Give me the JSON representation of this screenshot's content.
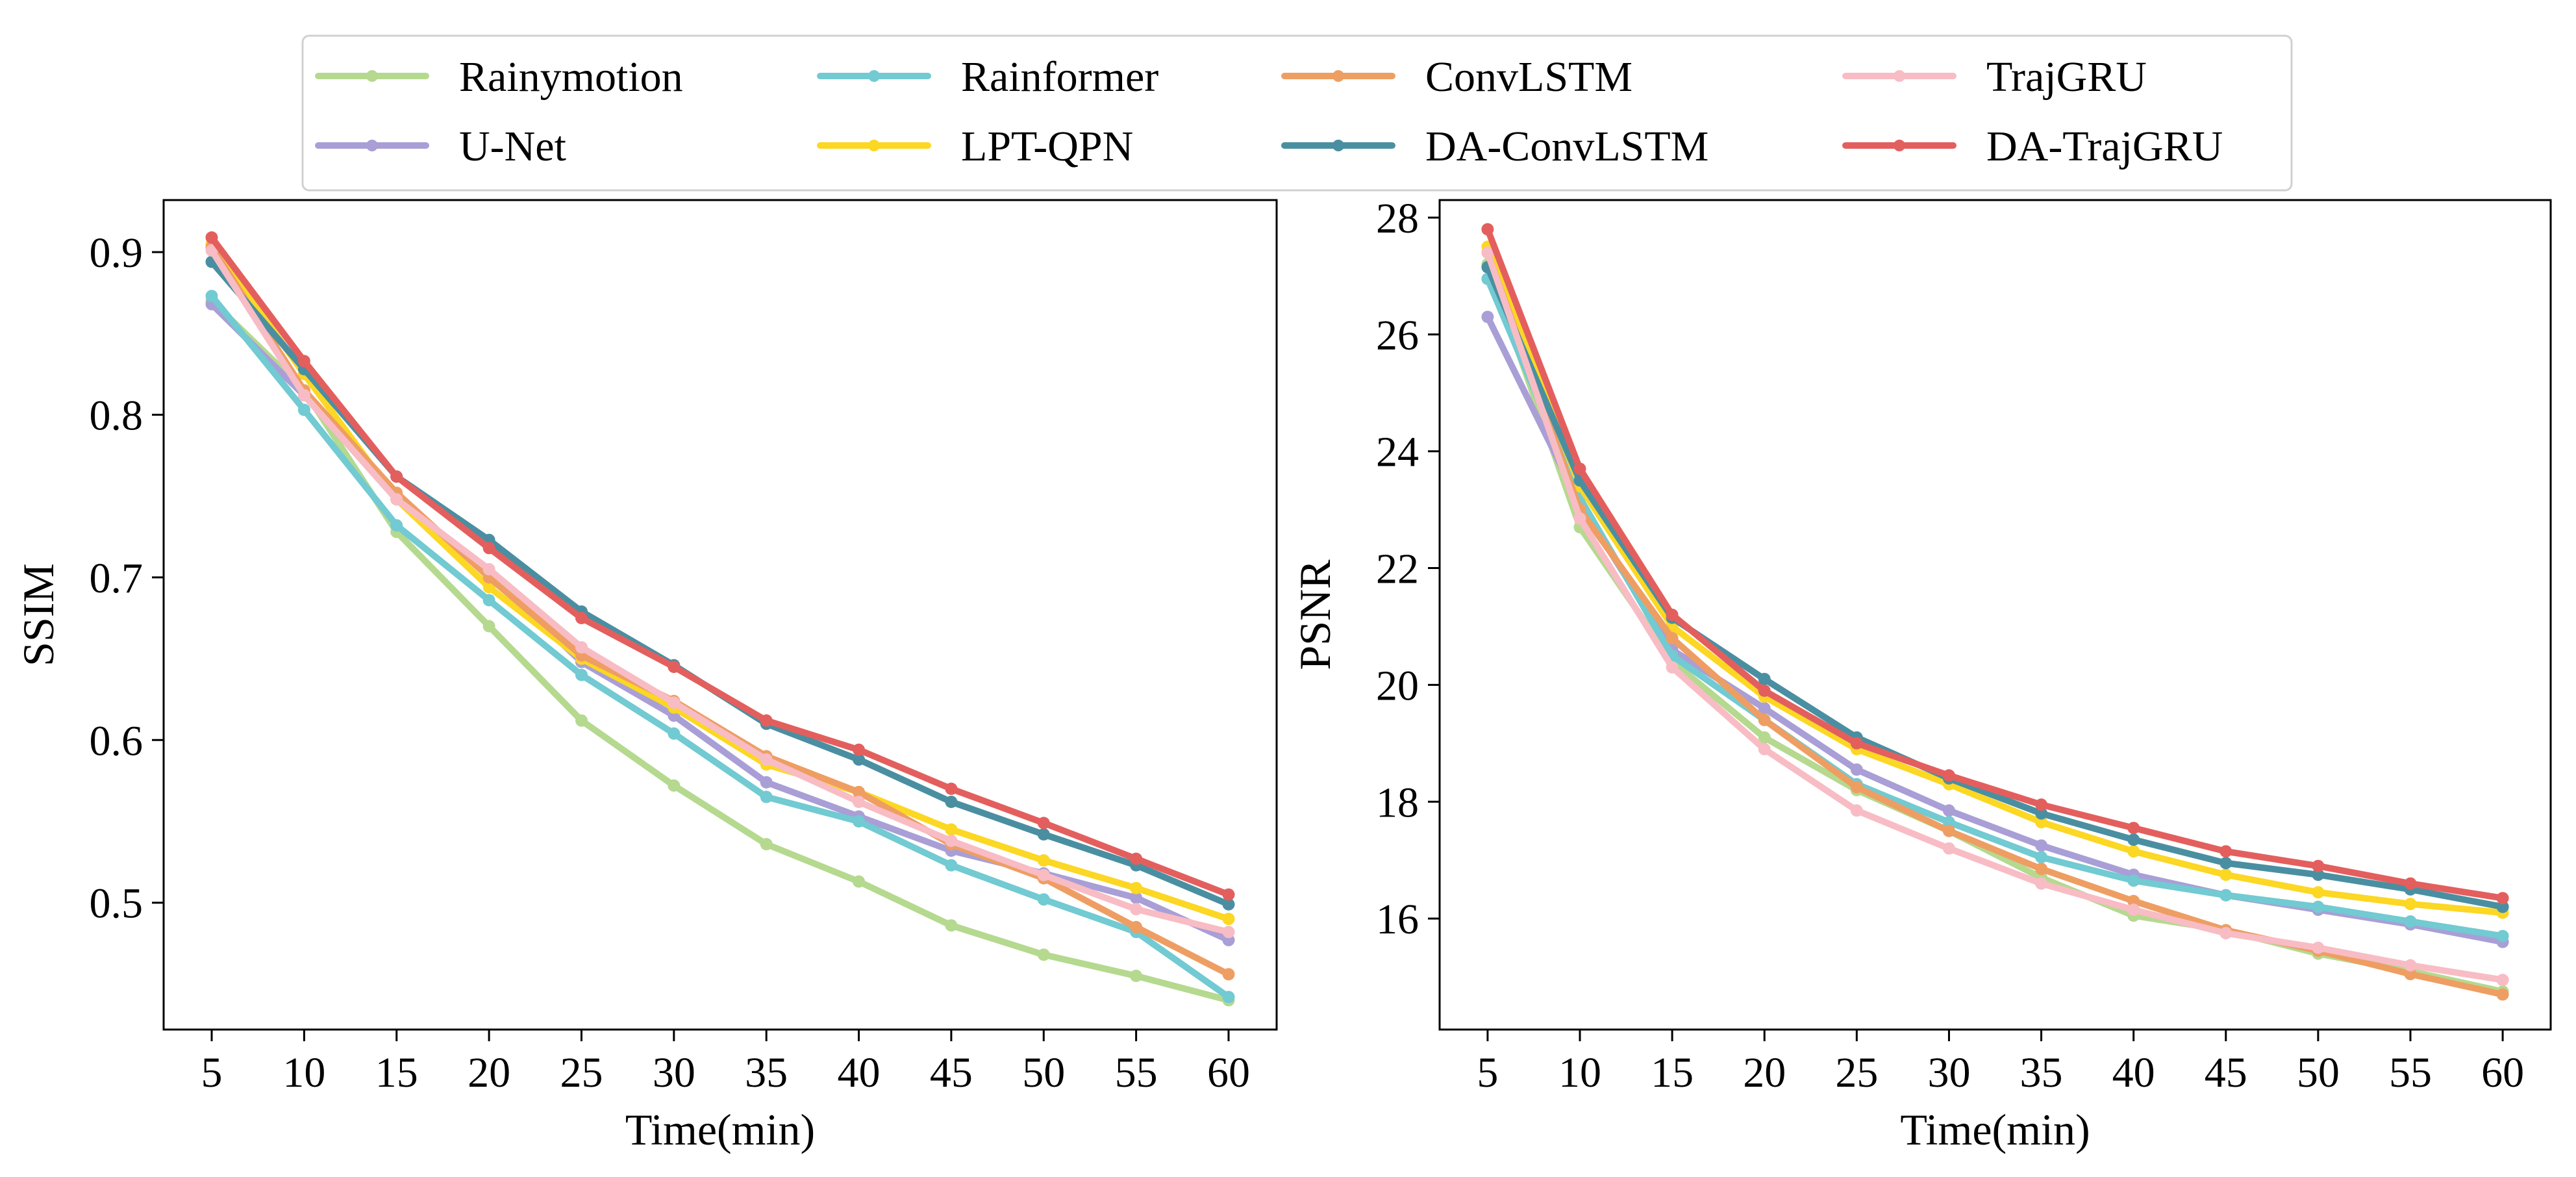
{
  "legend": {
    "columns": 4,
    "entries": [
      "Rainymotion",
      "Rainformer",
      "ConvLSTM",
      "TrajGRU",
      "U-Net",
      "LPT-QPN",
      "DA-ConvLSTM",
      "DA-TrajGRU"
    ]
  },
  "chart_data": [
    {
      "type": "line",
      "title": "",
      "xlabel": "Time(min)",
      "ylabel": "SSIM",
      "x": [
        5,
        10,
        15,
        20,
        25,
        30,
        35,
        40,
        45,
        50,
        55,
        60
      ],
      "xticks": [
        "5",
        "10",
        "15",
        "20",
        "25",
        "30",
        "35",
        "40",
        "45",
        "50",
        "55",
        "60"
      ],
      "xlim": [
        2.4,
        62.6
      ],
      "yticks": [
        "0.5",
        "0.6",
        "0.7",
        "0.8",
        "0.9"
      ],
      "ytick_values": [
        0.5,
        0.6,
        0.7,
        0.8,
        0.9
      ],
      "ylim": [
        0.422,
        0.932
      ],
      "grid": false,
      "series": [
        {
          "name": "Rainymotion",
          "color": "#b5d98f",
          "values": [
            0.87,
            0.815,
            0.728,
            0.67,
            0.612,
            0.572,
            0.536,
            0.513,
            0.486,
            0.468,
            0.455,
            0.44
          ]
        },
        {
          "name": "U-Net",
          "color": "#a99fd6",
          "values": [
            0.868,
            0.812,
            0.748,
            0.702,
            0.648,
            0.615,
            0.574,
            0.553,
            0.532,
            0.518,
            0.503,
            0.477
          ]
        },
        {
          "name": "Rainformer",
          "color": "#72cad2",
          "values": [
            0.873,
            0.803,
            0.732,
            0.686,
            0.64,
            0.604,
            0.565,
            0.55,
            0.523,
            0.502,
            0.482,
            0.442
          ]
        },
        {
          "name": "LPT-QPN",
          "color": "#fcd723",
          "values": [
            0.905,
            0.825,
            0.748,
            0.694,
            0.65,
            0.62,
            0.585,
            0.568,
            0.545,
            0.526,
            0.509,
            0.49
          ]
        },
        {
          "name": "ConvLSTM",
          "color": "#ee9e63",
          "values": [
            0.903,
            0.815,
            0.752,
            0.7,
            0.652,
            0.624,
            0.59,
            0.568,
            0.536,
            0.515,
            0.485,
            0.456
          ]
        },
        {
          "name": "DA-ConvLSTM",
          "color": "#4a8fa1",
          "values": [
            0.894,
            0.828,
            0.762,
            0.723,
            0.679,
            0.646,
            0.61,
            0.588,
            0.562,
            0.542,
            0.523,
            0.499
          ]
        },
        {
          "name": "TrajGRU",
          "color": "#f8bcc5",
          "values": [
            0.901,
            0.812,
            0.748,
            0.705,
            0.657,
            0.623,
            0.588,
            0.562,
            0.538,
            0.517,
            0.496,
            0.482
          ]
        },
        {
          "name": "DA-TrajGRU",
          "color": "#e35f5e",
          "values": [
            0.909,
            0.833,
            0.762,
            0.718,
            0.675,
            0.645,
            0.612,
            0.594,
            0.57,
            0.549,
            0.527,
            0.505
          ]
        }
      ]
    },
    {
      "type": "line",
      "title": "",
      "xlabel": "Time(min)",
      "ylabel": "PSNR",
      "x": [
        5,
        10,
        15,
        20,
        25,
        30,
        35,
        40,
        45,
        50,
        55,
        60
      ],
      "xticks": [
        "5",
        "10",
        "15",
        "20",
        "25",
        "30",
        "35",
        "40",
        "45",
        "50",
        "55",
        "60"
      ],
      "xlim": [
        2.4,
        62.6
      ],
      "yticks": [
        "16",
        "18",
        "20",
        "22",
        "24",
        "26",
        "28"
      ],
      "ytick_values": [
        16,
        18,
        20,
        22,
        24,
        26,
        28
      ],
      "ylim": [
        14.1,
        28.3
      ],
      "grid": false,
      "series": [
        {
          "name": "Rainymotion",
          "color": "#b5d98f",
          "values": [
            27.2,
            22.7,
            20.4,
            19.1,
            18.2,
            17.5,
            16.7,
            16.05,
            15.8,
            15.4,
            15.1,
            14.75
          ]
        },
        {
          "name": "U-Net",
          "color": "#a99fd6",
          "values": [
            26.3,
            23.1,
            20.6,
            19.6,
            18.55,
            17.85,
            17.25,
            16.75,
            16.4,
            16.15,
            15.9,
            15.6
          ]
        },
        {
          "name": "Rainformer",
          "color": "#72cad2",
          "values": [
            26.95,
            23.2,
            20.5,
            19.4,
            18.3,
            17.65,
            17.05,
            16.65,
            16.4,
            16.2,
            15.95,
            15.7
          ]
        },
        {
          "name": "LPT-QPN",
          "color": "#fcd723",
          "values": [
            27.5,
            23.4,
            21.0,
            19.8,
            18.9,
            18.3,
            17.65,
            17.15,
            16.75,
            16.45,
            16.25,
            16.1
          ]
        },
        {
          "name": "ConvLSTM",
          "color": "#ee9e63",
          "values": [
            27.4,
            23.0,
            20.8,
            19.4,
            18.25,
            17.5,
            16.85,
            16.3,
            15.8,
            15.45,
            15.05,
            14.7
          ]
        },
        {
          "name": "DA-ConvLSTM",
          "color": "#4a8fa1",
          "values": [
            27.15,
            23.5,
            21.15,
            20.1,
            19.1,
            18.4,
            17.8,
            17.35,
            16.95,
            16.75,
            16.5,
            16.2
          ]
        },
        {
          "name": "TrajGRU",
          "color": "#f8bcc5",
          "values": [
            27.4,
            22.85,
            20.3,
            18.9,
            17.85,
            17.2,
            16.6,
            16.15,
            15.75,
            15.5,
            15.2,
            14.95
          ]
        },
        {
          "name": "DA-TrajGRU",
          "color": "#e35f5e",
          "values": [
            27.8,
            23.7,
            21.2,
            19.9,
            19.0,
            18.45,
            17.95,
            17.55,
            17.15,
            16.9,
            16.6,
            16.35
          ]
        }
      ]
    }
  ]
}
